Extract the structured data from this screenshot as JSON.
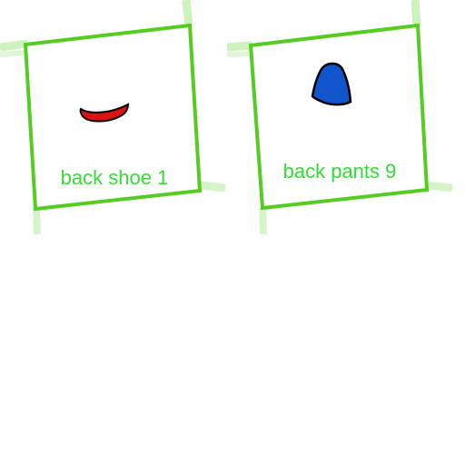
{
  "colors": {
    "frame": "#55cc22",
    "frame_glow": "#a6e88a",
    "label": "#33dd33",
    "shoe_fill": "#dd1111",
    "shoe_stroke": "#000000",
    "pants_fill": "#1155cc",
    "pants_stroke": "#000000",
    "background": "#ffffff"
  },
  "sprites": [
    {
      "label": "back shoe 1",
      "icon": "shoe-icon"
    },
    {
      "label": "back pants 9",
      "icon": "pants-icon"
    }
  ]
}
